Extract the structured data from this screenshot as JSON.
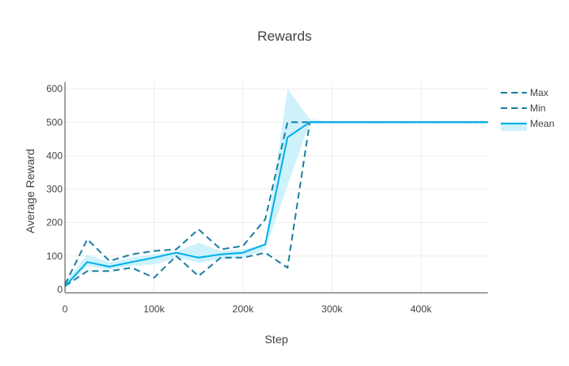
{
  "chart_data": {
    "type": "line",
    "title": "Rewards",
    "xlabel": "Step",
    "ylabel": "Average Reward",
    "xlim": [
      0,
      475000
    ],
    "ylim": [
      -10,
      620
    ],
    "x_ticks": [
      0,
      100000,
      200000,
      300000,
      400000
    ],
    "x_tick_labels": [
      "0",
      "100k",
      "200k",
      "300k",
      "400k"
    ],
    "y_ticks": [
      0,
      100,
      200,
      300,
      400,
      500,
      600
    ],
    "y_tick_labels": [
      "0",
      "100",
      "200",
      "300",
      "400",
      "500",
      "600"
    ],
    "grid": true,
    "legend_position": "top-right",
    "x": [
      0,
      25000,
      50000,
      75000,
      100000,
      125000,
      150000,
      175000,
      200000,
      225000,
      250000,
      275000,
      300000,
      325000,
      350000,
      375000,
      400000,
      425000,
      450000,
      475000
    ],
    "band": {
      "upper": [
        20,
        105,
        80,
        95,
        105,
        112,
        140,
        115,
        120,
        135,
        600,
        510,
        500,
        500,
        500,
        500,
        500,
        500,
        500,
        500
      ],
      "lower": [
        5,
        70,
        60,
        70,
        75,
        95,
        80,
        90,
        95,
        120,
        310,
        500,
        500,
        500,
        500,
        500,
        500,
        500,
        500,
        500
      ]
    },
    "series": [
      {
        "name": "Max",
        "style": "dash",
        "color": "#1b7ea1",
        "values": [
          15,
          150,
          85,
          105,
          115,
          120,
          180,
          120,
          130,
          210,
          500,
          500,
          500,
          500,
          500,
          500,
          500,
          500,
          500,
          500
        ]
      },
      {
        "name": "Min",
        "style": "dash",
        "color": "#1b7ea1",
        "values": [
          10,
          55,
          55,
          65,
          35,
          100,
          40,
          95,
          95,
          110,
          65,
          500,
          500,
          500,
          500,
          500,
          500,
          500,
          500,
          500
        ]
      },
      {
        "name": "Mean",
        "style": "solid",
        "color": "#00aee8",
        "values": [
          10,
          82,
          68,
          82,
          95,
          110,
          95,
          105,
          110,
          135,
          455,
          500,
          500,
          500,
          500,
          500,
          500,
          500,
          500,
          500
        ]
      }
    ],
    "colors": {
      "band": "#cdf2fc",
      "grid": "#eeeeee",
      "axis": "#444444"
    }
  }
}
